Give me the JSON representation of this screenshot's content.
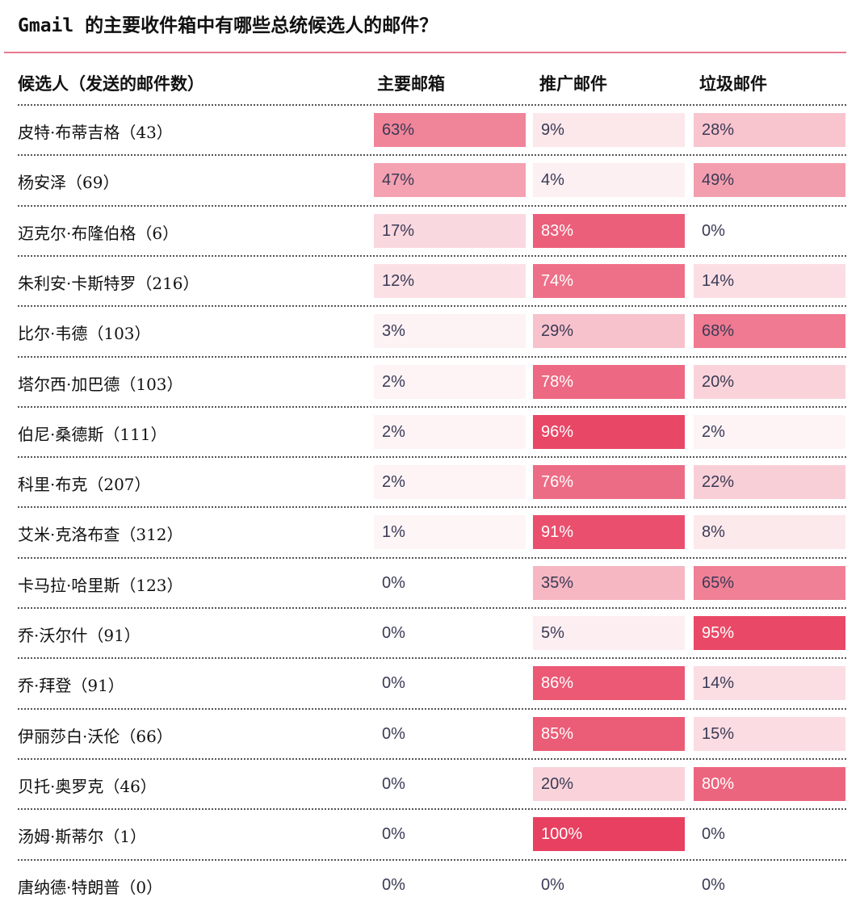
{
  "chart_data": {
    "type": "heatmap",
    "title": "Gmail 的主要收件箱中有哪些总统候选人的邮件？",
    "columns": [
      "候选人（发送的邮件数）",
      "主要邮箱",
      "推广邮件",
      "垃圾邮件"
    ],
    "rows": [
      {
        "name": "皮特·布蒂吉格（43）",
        "values": [
          63,
          9,
          28
        ]
      },
      {
        "name": "杨安泽（69）",
        "values": [
          47,
          4,
          49
        ]
      },
      {
        "name": "迈克尔·布隆伯格（6）",
        "values": [
          17,
          83,
          0
        ]
      },
      {
        "name": "朱利安·卡斯特罗（216）",
        "values": [
          12,
          74,
          14
        ]
      },
      {
        "name": "比尔·韦德（103）",
        "values": [
          3,
          29,
          68
        ]
      },
      {
        "name": "塔尔西·加巴德（103）",
        "values": [
          2,
          78,
          20
        ]
      },
      {
        "name": "伯尼·桑德斯（111）",
        "values": [
          2,
          96,
          2
        ]
      },
      {
        "name": "科里·布克（207）",
        "values": [
          2,
          76,
          22
        ]
      },
      {
        "name": "艾米·克洛布查（312）",
        "values": [
          1,
          91,
          8
        ]
      },
      {
        "name": "卡马拉·哈里斯（123）",
        "values": [
          0,
          35,
          65
        ]
      },
      {
        "name": "乔·沃尔什（91）",
        "values": [
          0,
          5,
          95
        ]
      },
      {
        "name": "乔·拜登（91）",
        "values": [
          0,
          86,
          14
        ]
      },
      {
        "name": "伊丽莎白·沃伦（66）",
        "values": [
          0,
          85,
          15
        ]
      },
      {
        "name": "贝托·奥罗克（46）",
        "values": [
          0,
          20,
          80
        ]
      },
      {
        "name": "汤姆·斯蒂尔（1）",
        "values": [
          0,
          100,
          0
        ]
      },
      {
        "name": "唐纳德·特朗普（0）",
        "values": [
          0,
          0,
          0
        ]
      }
    ],
    "unit": "%",
    "colors": {
      "accent": "#e8405f",
      "text_dark": "#3a3a55",
      "text_light": "#ffffff",
      "rule": "#e8788e"
    }
  }
}
